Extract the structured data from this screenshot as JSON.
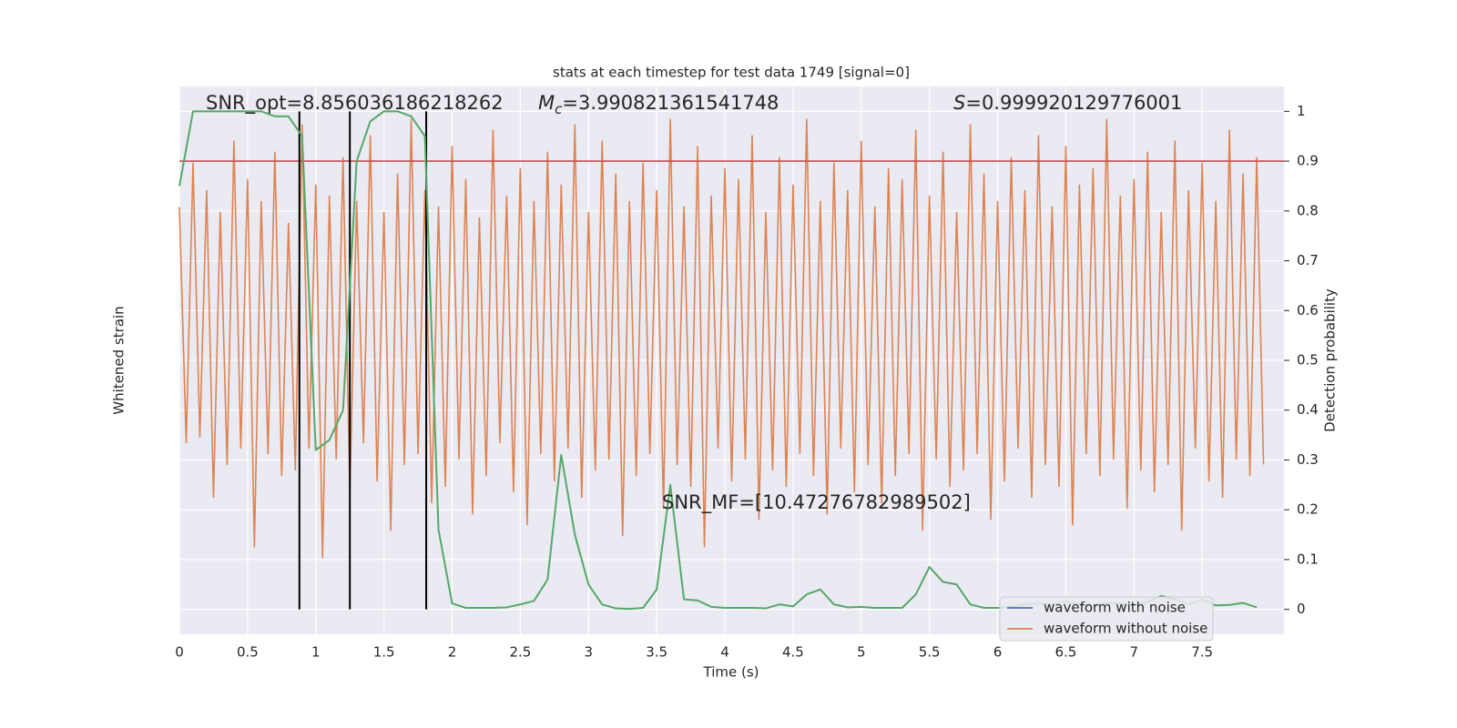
{
  "chart_data": {
    "type": "line",
    "title": "stats at each timestep for test data 1749 [signal=0]",
    "xlabel": "Time (s)",
    "ylabel": "Whitened strain",
    "y2label": "Detection probability",
    "xlim": [
      0,
      8.1
    ],
    "xticks": [
      0.0,
      0.5,
      1.0,
      1.5,
      2.0,
      2.5,
      3.0,
      3.5,
      4.0,
      4.5,
      5.0,
      5.5,
      6.0,
      6.5,
      7.0,
      7.5
    ],
    "ylim": [
      -5.5,
      4.5
    ],
    "y2lim": [
      -0.05,
      1.05
    ],
    "y2ticks": [
      0.0,
      0.1,
      0.2,
      0.3,
      0.4,
      0.5,
      0.6,
      0.7,
      0.8,
      0.9,
      1.0
    ],
    "grid": true,
    "series": [
      {
        "name": "waveform without noise",
        "color": "#dd8452",
        "x": [
          0,
          0.05,
          0.1,
          0.15,
          0.2,
          0.25,
          0.3,
          0.35,
          0.4,
          0.45,
          0.5,
          0.55,
          0.6,
          0.65,
          0.7,
          0.75,
          0.8,
          0.85,
          0.9,
          0.95,
          1,
          1.05,
          1.1,
          1.15,
          1.2,
          1.25,
          1.3,
          1.35,
          1.4,
          1.45,
          1.5,
          1.55,
          1.6,
          1.65,
          1.7,
          1.75,
          1.8,
          1.85,
          1.9,
          1.95,
          2,
          2.05,
          2.1,
          2.15,
          2.2,
          2.25,
          2.3,
          2.35,
          2.4,
          2.45,
          2.5,
          2.55,
          2.6,
          2.65,
          2.7,
          2.75,
          2.8,
          2.85,
          2.9,
          2.95,
          3,
          3.05,
          3.1,
          3.15,
          3.2,
          3.25,
          3.3,
          3.35,
          3.4,
          3.45,
          3.5,
          3.55,
          3.6,
          3.65,
          3.7,
          3.75,
          3.8,
          3.85,
          3.9,
          3.95,
          4,
          4.05,
          4.1,
          4.15,
          4.2,
          4.25,
          4.3,
          4.35,
          4.4,
          4.45,
          4.5,
          4.55,
          4.6,
          4.65,
          4.7,
          4.75,
          4.8,
          4.85,
          4.9,
          4.95,
          5,
          5.05,
          5.1,
          5.15,
          5.2,
          5.25,
          5.3,
          5.35,
          5.4,
          5.45,
          5.5,
          5.55,
          5.6,
          5.65,
          5.7,
          5.75,
          5.8,
          5.85,
          5.9,
          5.95,
          6,
          6.05,
          6.1,
          6.15,
          6.2,
          6.25,
          6.3,
          6.35,
          6.4,
          6.45,
          6.5,
          6.55,
          6.6,
          6.65,
          6.7,
          6.75,
          6.8,
          6.85,
          6.9,
          6.95,
          7,
          7.05,
          7.1,
          7.15,
          7.2,
          7.25,
          7.3,
          7.35,
          7.4,
          7.45,
          7.5,
          7.55,
          7.6,
          7.65,
          7.7,
          7.75,
          7.8,
          7.85,
          7.9,
          7.95
        ],
        "values": [
          2.3,
          -2.0,
          3.1,
          -1.9,
          2.6,
          -3.0,
          2.2,
          -2.4,
          3.5,
          -2.1,
          2.8,
          -3.9,
          2.4,
          -2.2,
          3.3,
          -2.6,
          2.0,
          -2.5,
          3.8,
          -2.1,
          2.7,
          -4.1,
          2.5,
          -2.3,
          3.2,
          -2.9,
          2.4,
          -2.0,
          3.6,
          -2.7,
          2.2,
          -3.6,
          2.9,
          -2.4,
          3.9,
          -2.2,
          2.6,
          -3.1,
          2.3,
          -2.8,
          3.4,
          -2.3,
          2.8,
          -3.3,
          2.1,
          -2.6,
          3.7,
          -2.0,
          2.5,
          -2.9,
          3.0,
          -3.5,
          2.4,
          -2.2,
          3.3,
          -2.7,
          2.7,
          -2.1,
          3.8,
          -3.0,
          2.2,
          -2.5,
          3.5,
          -2.3,
          2.9,
          -3.7,
          2.4,
          -2.6,
          3.1,
          -2.2,
          2.6,
          -3.2,
          3.9,
          -2.4,
          2.3,
          -2.8,
          3.4,
          -3.9,
          2.5,
          -2.1,
          3.0,
          -2.7,
          2.8,
          -2.3,
          3.6,
          -3.4,
          2.2,
          -2.5,
          3.2,
          -2.8,
          2.7,
          -2.2,
          3.9,
          -2.6,
          2.4,
          -3.3,
          3.1,
          -2.1,
          2.6,
          -2.9,
          3.5,
          -2.4,
          2.3,
          -3.1,
          3.0,
          -2.6,
          2.8,
          -2.2,
          3.7,
          -3.6,
          2.5,
          -2.3,
          3.3,
          -2.8,
          2.2,
          -2.5,
          3.8,
          -2.2,
          2.9,
          -3.4,
          2.4,
          -2.7,
          3.2,
          -2.1,
          2.6,
          -3.0,
          3.6,
          -2.4,
          2.3,
          -2.8,
          3.4,
          -3.5,
          2.7,
          -2.2,
          3.0,
          -2.6,
          3.9,
          -2.3,
          2.5,
          -3.2,
          2.8,
          -2.5,
          3.3,
          -2.9,
          2.2,
          -2.4,
          3.5,
          -3.6,
          2.6,
          -2.1,
          3.1,
          -2.7,
          2.4,
          -3.0,
          3.7,
          -2.3,
          2.9,
          -2.6,
          3.2,
          -2.4
        ]
      },
      {
        "name": "detection probability",
        "color": "#55a868",
        "axis": "y2",
        "x": [
          0,
          0.1,
          0.2,
          0.3,
          0.4,
          0.5,
          0.6,
          0.7,
          0.8,
          0.9,
          1,
          1.1,
          1.2,
          1.3,
          1.4,
          1.5,
          1.6,
          1.7,
          1.8,
          1.9,
          2,
          2.1,
          2.2,
          2.3,
          2.4,
          2.5,
          2.6,
          2.7,
          2.8,
          2.9,
          3,
          3.1,
          3.2,
          3.3,
          3.4,
          3.5,
          3.6,
          3.7,
          3.8,
          3.9,
          4,
          4.1,
          4.2,
          4.3,
          4.4,
          4.5,
          4.6,
          4.7,
          4.8,
          4.9,
          5,
          5.1,
          5.2,
          5.3,
          5.4,
          5.5,
          5.6,
          5.7,
          5.8,
          5.9,
          6,
          6.1,
          6.2,
          6.3,
          6.4,
          6.5,
          6.6,
          6.7,
          6.8,
          6.9,
          7,
          7.1,
          7.2,
          7.3,
          7.4,
          7.5,
          7.6,
          7.7,
          7.8,
          7.9
        ],
        "values": [
          0.85,
          1.0,
          1.0,
          1.0,
          1.0,
          1.0,
          1.0,
          0.99,
          0.99,
          0.95,
          0.32,
          0.34,
          0.4,
          0.9,
          0.98,
          1.0,
          1.0,
          0.99,
          0.95,
          0.16,
          0.012,
          0.003,
          0.003,
          0.003,
          0.004,
          0.01,
          0.017,
          0.06,
          0.31,
          0.15,
          0.05,
          0.01,
          0.002,
          0.001,
          0.003,
          0.04,
          0.25,
          0.02,
          0.018,
          0.005,
          0.003,
          0.003,
          0.003,
          0.002,
          0.01,
          0.006,
          0.03,
          0.04,
          0.01,
          0.004,
          0.005,
          0.003,
          0.003,
          0.003,
          0.03,
          0.085,
          0.055,
          0.05,
          0.01,
          0.003,
          0.003,
          0.005,
          0.01,
          0.012,
          0.01,
          0.015,
          0.01,
          0.008,
          0.013,
          0.012,
          0.008,
          0.015,
          0.027,
          0.02,
          0.01,
          0.02,
          0.008,
          0.009,
          0.013,
          0.004
        ]
      }
    ],
    "threshold": {
      "value": 0.9,
      "color": "#c44e52"
    },
    "vlines": {
      "x": [
        0.88,
        1.25,
        1.81
      ],
      "from": 0.0,
      "to": 1.0,
      "color": "#000000"
    },
    "annotations": [
      {
        "text": "SNR_opt=8.856036186218262"
      },
      {
        "symbol": "M",
        "sub": "c",
        "text": "=3.990821361541748"
      },
      {
        "symbol": "S",
        "text": "=0.999920129776001"
      },
      {
        "text": "SNR_MF=[10.47276782989502]"
      }
    ],
    "legend": [
      {
        "name": "waveform with noise",
        "color": "#4c72b0"
      },
      {
        "name": "waveform without noise",
        "color": "#dd8452"
      }
    ]
  }
}
